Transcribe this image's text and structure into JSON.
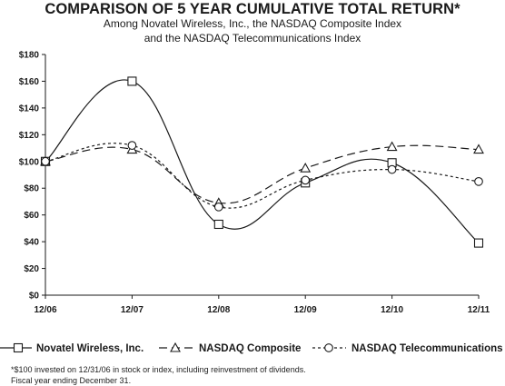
{
  "header": {
    "title": "COMPARISON OF 5 YEAR CUMULATIVE TOTAL RETURN*",
    "subtitle_line1": "Among Novatel Wireless, Inc., the NASDAQ Composite Index",
    "subtitle_line2": "and the NASDAQ Telecommunications Index"
  },
  "chart_data": {
    "type": "line",
    "categories": [
      "12/06",
      "12/07",
      "12/08",
      "12/09",
      "12/10",
      "12/11"
    ],
    "ylim": [
      0,
      180
    ],
    "yticks": [
      0,
      20,
      40,
      60,
      80,
      100,
      120,
      140,
      160,
      180
    ],
    "ytick_labels": [
      "$0",
      "$20",
      "$40",
      "$60",
      "$80",
      "$100",
      "$120",
      "$140",
      "$160",
      "$180"
    ],
    "grid": false,
    "legend_position": "bottom",
    "series": [
      {
        "name": "Novatel Wireless, Inc.",
        "values": [
          100,
          160,
          53,
          84,
          99,
          39
        ],
        "marker": "square",
        "dash": "solid",
        "color": "#1a1a1a"
      },
      {
        "name": "NASDAQ Composite",
        "values": [
          100,
          109,
          69,
          95,
          111,
          109
        ],
        "marker": "triangle",
        "dash": "long-dash",
        "color": "#1a1a1a"
      },
      {
        "name": "NASDAQ Telecommunications",
        "values": [
          100,
          112,
          66,
          86,
          94,
          85
        ],
        "marker": "circle",
        "dash": "dotted",
        "color": "#1a1a1a"
      }
    ]
  },
  "footnotes": {
    "line1": "*$100 invested on 12/31/06 in stock or index, including reinvestment of dividends.",
    "line2": "Fiscal year ending December 31."
  }
}
